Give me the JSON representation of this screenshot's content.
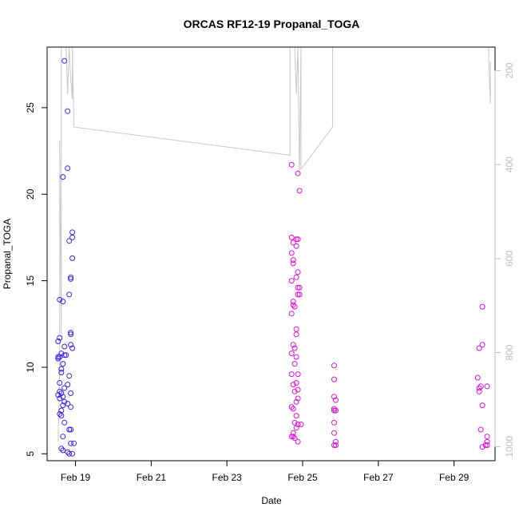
{
  "chart_data": {
    "type": "scatter",
    "title": "ORCAS RF12-19 Propanal_TOGA",
    "xlabel": "Date",
    "ylabel": "Propanal_TOGA",
    "xlim": [
      "2016-02-18 06:00",
      "2016-03-01 02:00"
    ],
    "ylim": [
      4.6,
      28.5
    ],
    "y_ticks": [
      5,
      10,
      15,
      20,
      25
    ],
    "x_ticks": [
      {
        "date": "2016-02-19",
        "label": "Feb 19"
      },
      {
        "date": "2016-02-21",
        "label": "Feb 21"
      },
      {
        "date": "2016-02-23",
        "label": "Feb 23"
      },
      {
        "date": "2016-02-25",
        "label": "Feb 25"
      },
      {
        "date": "2016-02-27",
        "label": "Feb 27"
      },
      {
        "date": "2016-02-29",
        "label": "Feb 29"
      }
    ],
    "secondary_axis": {
      "side": "right",
      "reversed": true,
      "range": [
        150,
        1030
      ],
      "ticks": [
        200,
        400,
        600,
        800,
        1000
      ],
      "color": "#bdbdbd"
    },
    "marker": "open-circle",
    "series": [
      {
        "color": "#3f1ff0",
        "points": [
          [
            "2016-02-18 17:00",
            27.7
          ],
          [
            "2016-02-18 19:00",
            24.8
          ],
          [
            "2016-02-18 16:00",
            21.0
          ],
          [
            "2016-02-18 19:00",
            21.5
          ],
          [
            "2016-02-18 22:00",
            17.8
          ],
          [
            "2016-02-18 22:00",
            17.5
          ],
          [
            "2016-02-18 20:00",
            17.3
          ],
          [
            "2016-02-18 22:00",
            16.3
          ],
          [
            "2016-02-18 21:00",
            15.2
          ],
          [
            "2016-02-18 21:00",
            15.1
          ],
          [
            "2016-02-18 20:00",
            14.2
          ],
          [
            "2016-02-18 14:00",
            13.9
          ],
          [
            "2016-02-18 16:00",
            13.8
          ],
          [
            "2016-02-18 21:00",
            12.0
          ],
          [
            "2016-02-18 21:00",
            11.9
          ],
          [
            "2016-02-18 14:00",
            11.7
          ],
          [
            "2016-02-18 13:00",
            11.5
          ],
          [
            "2016-02-18 21:00",
            11.3
          ],
          [
            "2016-02-18 17:00",
            11.2
          ],
          [
            "2016-02-18 22:00",
            11.1
          ],
          [
            "2016-02-18 15:00",
            10.8
          ],
          [
            "2016-02-18 17:00",
            10.7
          ],
          [
            "2016-02-18 18:00",
            10.7
          ],
          [
            "2016-02-18 13:00",
            10.6
          ],
          [
            "2016-02-18 14:00",
            10.6
          ],
          [
            "2016-02-18 13:00",
            10.5
          ],
          [
            "2016-02-18 16:00",
            10.2
          ],
          [
            "2016-02-18 15:00",
            9.9
          ],
          [
            "2016-02-18 15:00",
            9.7
          ],
          [
            "2016-02-18 20:00",
            9.5
          ],
          [
            "2016-02-18 14:00",
            9.1
          ],
          [
            "2016-02-18 19:00",
            9.0
          ],
          [
            "2016-02-18 17:00",
            8.8
          ],
          [
            "2016-02-18 14:00",
            8.6
          ],
          [
            "2016-02-18 15:00",
            8.5
          ],
          [
            "2016-02-18 21:00",
            8.5
          ],
          [
            "2016-02-18 13:00",
            8.4
          ],
          [
            "2016-02-18 16:00",
            8.3
          ],
          [
            "2016-02-18 14:00",
            8.2
          ],
          [
            "2016-02-18 17:00",
            8.0
          ],
          [
            "2016-02-18 19:00",
            7.9
          ],
          [
            "2016-02-18 16:00",
            7.8
          ],
          [
            "2016-02-18 21:00",
            7.7
          ],
          [
            "2016-02-18 15:00",
            7.5
          ],
          [
            "2016-02-18 14:00",
            7.3
          ],
          [
            "2016-02-18 15:00",
            7.2
          ],
          [
            "2016-02-18 17:00",
            6.8
          ],
          [
            "2016-02-18 20:00",
            6.4
          ],
          [
            "2016-02-18 21:00",
            6.4
          ],
          [
            "2016-02-18 16:00",
            6.0
          ],
          [
            "2016-02-18 21:00",
            5.6
          ],
          [
            "2016-02-18 23:00",
            5.6
          ],
          [
            "2016-02-18 15:00",
            5.3
          ],
          [
            "2016-02-18 16:00",
            5.2
          ],
          [
            "2016-02-18 19:00",
            5.1
          ],
          [
            "2016-02-18 20:00",
            5.0
          ],
          [
            "2016-02-18 22:00",
            5.0
          ]
        ]
      },
      {
        "color": "#e010e0",
        "points": [
          [
            "2016-02-24 17:00",
            21.7
          ],
          [
            "2016-02-24 21:00",
            21.2
          ],
          [
            "2016-02-24 22:00",
            20.2
          ],
          [
            "2016-02-24 17:00",
            17.5
          ],
          [
            "2016-02-24 20:00",
            17.4
          ],
          [
            "2016-02-24 21:00",
            17.4
          ],
          [
            "2016-02-24 18:00",
            17.2
          ],
          [
            "2016-02-24 20:00",
            17.0
          ],
          [
            "2016-02-24 17:00",
            16.6
          ],
          [
            "2016-02-24 18:00",
            16.2
          ],
          [
            "2016-02-24 18:00",
            16.0
          ],
          [
            "2016-02-24 21:00",
            15.5
          ],
          [
            "2016-02-24 20:00",
            15.2
          ],
          [
            "2016-02-24 17:00",
            15.0
          ],
          [
            "2016-02-24 21:00",
            14.6
          ],
          [
            "2016-02-24 22:00",
            14.6
          ],
          [
            "2016-02-24 21:00",
            14.2
          ],
          [
            "2016-02-24 22:00",
            14.2
          ],
          [
            "2016-02-24 18:00",
            13.8
          ],
          [
            "2016-02-24 18:00",
            13.6
          ],
          [
            "2016-02-24 19:00",
            13.5
          ],
          [
            "2016-02-24 17:00",
            13.1
          ],
          [
            "2016-02-24 20:00",
            12.2
          ],
          [
            "2016-02-24 20:00",
            11.9
          ],
          [
            "2016-02-24 18:00",
            11.3
          ],
          [
            "2016-02-24 19:00",
            11.1
          ],
          [
            "2016-02-24 17:00",
            10.8
          ],
          [
            "2016-02-24 20:00",
            10.6
          ],
          [
            "2016-02-24 19:00",
            10.2
          ],
          [
            "2016-02-24 17:00",
            9.6
          ],
          [
            "2016-02-24 21:00",
            9.6
          ],
          [
            "2016-02-24 20:00",
            9.1
          ],
          [
            "2016-02-24 18:00",
            9.0
          ],
          [
            "2016-02-24 19:00",
            8.6
          ],
          [
            "2016-02-24 21:00",
            8.7
          ],
          [
            "2016-02-24 21:00",
            8.2
          ],
          [
            "2016-02-24 20:00",
            8.0
          ],
          [
            "2016-02-24 17:00",
            7.7
          ],
          [
            "2016-02-24 18:00",
            7.6
          ],
          [
            "2016-02-24 20:00",
            7.2
          ],
          [
            "2016-02-24 19:00",
            6.8
          ],
          [
            "2016-02-24 21:00",
            6.7
          ],
          [
            "2016-02-24 23:00",
            6.7
          ],
          [
            "2016-02-24 20:00",
            6.5
          ],
          [
            "2016-02-24 18:00",
            6.2
          ],
          [
            "2016-02-24 17:00",
            6.0
          ],
          [
            "2016-02-24 18:00",
            6.0
          ],
          [
            "2016-02-24 19:00",
            5.9
          ],
          [
            "2016-02-24 21:00",
            5.7
          ],
          [
            "2016-02-25 20:00",
            10.1
          ],
          [
            "2016-02-25 20:00",
            9.3
          ],
          [
            "2016-02-25 20:00",
            8.3
          ],
          [
            "2016-02-25 21:00",
            8.1
          ],
          [
            "2016-02-25 20:00",
            7.6
          ],
          [
            "2016-02-25 20:00",
            7.5
          ],
          [
            "2016-02-25 21:00",
            7.5
          ],
          [
            "2016-02-25 20:00",
            6.8
          ],
          [
            "2016-02-25 20:00",
            6.2
          ],
          [
            "2016-02-25 21:00",
            5.7
          ],
          [
            "2016-02-25 20:00",
            5.5
          ],
          [
            "2016-02-25 21:00",
            5.5
          ],
          [
            "2016-02-29 18:00",
            13.5
          ],
          [
            "2016-02-29 18:00",
            11.3
          ],
          [
            "2016-02-29 16:00",
            11.1
          ],
          [
            "2016-02-29 15:00",
            9.4
          ],
          [
            "2016-02-29 16:00",
            8.8
          ],
          [
            "2016-02-29 17:00",
            8.9
          ],
          [
            "2016-02-29 16:00",
            8.6
          ],
          [
            "2016-02-29 21:00",
            8.9
          ],
          [
            "2016-02-29 18:00",
            7.8
          ],
          [
            "2016-02-29 17:00",
            6.4
          ],
          [
            "2016-02-29 21:00",
            6.0
          ],
          [
            "2016-02-29 21:00",
            5.7
          ],
          [
            "2016-02-29 21:00",
            5.5
          ],
          [
            "2016-02-29 18:00",
            5.4
          ],
          [
            "2016-02-29 20:00",
            5.5
          ]
        ]
      }
    ],
    "pressure_trace": {
      "color": "#c8c8c8",
      "points": [
        [
          "2016-02-18 13:00",
          990
        ],
        [
          "2016-02-18 14:00",
          830
        ],
        [
          "2016-02-18 14:00",
          350
        ],
        [
          "2016-02-18 15:00",
          760
        ],
        [
          "2016-02-18 15:00",
          150
        ],
        [
          "2016-02-18 18:00",
          150
        ],
        [
          "2016-02-18 19:00",
          250
        ],
        [
          "2016-02-18 20:00",
          150
        ],
        [
          "2016-02-18 21:00",
          220
        ],
        [
          "2016-02-18 22:00",
          260
        ],
        [
          "2016-02-18 22:00",
          150
        ],
        [
          "2016-02-18 23:00",
          320
        ],
        [
          "2016-02-24 16:00",
          380
        ],
        [
          "2016-02-24 16:00",
          150
        ],
        [
          "2016-02-24 19:00",
          150
        ],
        [
          "2016-02-24 20:00",
          250
        ],
        [
          "2016-02-24 21:00",
          150
        ],
        [
          "2016-02-24 22:00",
          420
        ],
        [
          "2016-02-24 23:00",
          150
        ],
        [
          "2016-02-24 23:00",
          410
        ],
        [
          "2016-02-25 19:00",
          320
        ],
        [
          "2016-02-25 19:00",
          150
        ],
        [
          "2016-02-29 22:00",
          150
        ],
        [
          "2016-02-29 22:00",
          180
        ],
        [
          "2016-02-29 23:00",
          270
        ],
        [
          "2016-02-29 23:00",
          180
        ]
      ]
    }
  }
}
